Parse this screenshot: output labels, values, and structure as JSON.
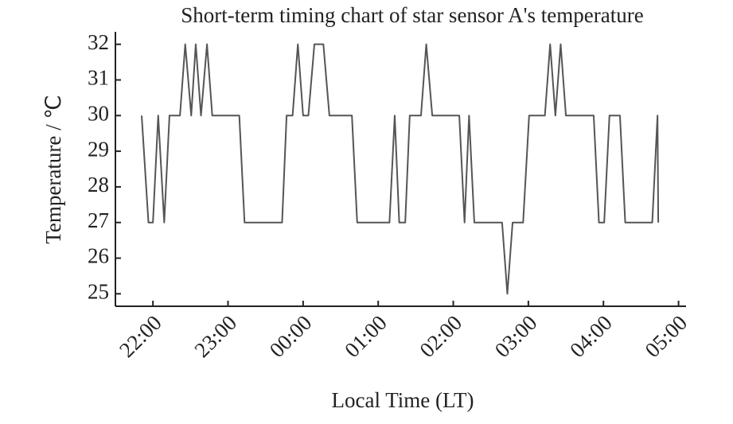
{
  "chart_data": {
    "type": "line",
    "title": "Short-term timing chart of star sensor A's temperature",
    "x_label": "Local Time (LT)",
    "y_label": "Temperature / ℃",
    "x": [
      21.85,
      21.94,
      22.0,
      22.07,
      22.15,
      22.22,
      22.36,
      22.43,
      22.51,
      22.57,
      22.64,
      22.72,
      22.79,
      23.15,
      23.22,
      23.72,
      23.78,
      23.86,
      23.93,
      24.0,
      24.07,
      24.15,
      24.27,
      24.35,
      24.65,
      24.72,
      25.15,
      25.22,
      25.28,
      25.36,
      25.42,
      25.57,
      25.64,
      25.72,
      26.08,
      26.15,
      26.21,
      26.28,
      26.65,
      26.72,
      26.79,
      26.93,
      27.01,
      27.22,
      27.29,
      27.36,
      27.43,
      27.5,
      27.87,
      27.94,
      28.01,
      28.08,
      28.22,
      28.29,
      28.65,
      28.72,
      28.73
    ],
    "series": [
      {
        "name": "Temperature",
        "color": "#555555",
        "values": [
          30,
          27,
          27,
          30,
          27,
          30,
          30,
          32,
          30,
          32,
          30,
          32,
          30,
          30,
          27,
          27,
          30,
          30,
          32,
          30,
          30,
          32,
          32,
          30,
          30,
          27,
          27,
          30,
          27,
          27,
          30,
          30,
          32,
          30,
          30,
          27,
          30,
          27,
          27,
          25,
          27,
          27,
          30,
          30,
          32,
          30,
          32,
          30,
          30,
          27,
          27,
          30,
          30,
          27,
          27,
          30,
          27
        ]
      }
    ],
    "xlim": [
      21.5,
      29.1
    ],
    "xticks": [
      {
        "value": 22,
        "label": "22:00"
      },
      {
        "value": 23,
        "label": "23:00"
      },
      {
        "value": 24,
        "label": "00:00"
      },
      {
        "value": 25,
        "label": "01:00"
      },
      {
        "value": 26,
        "label": "02:00"
      },
      {
        "value": 27,
        "label": "03:00"
      },
      {
        "value": 28,
        "label": "04:00"
      },
      {
        "value": 29,
        "label": "05:00"
      }
    ],
    "ylim": [
      24.65,
      32.35
    ],
    "yticks": [
      25,
      26,
      27,
      28,
      29,
      30,
      31,
      32
    ]
  }
}
